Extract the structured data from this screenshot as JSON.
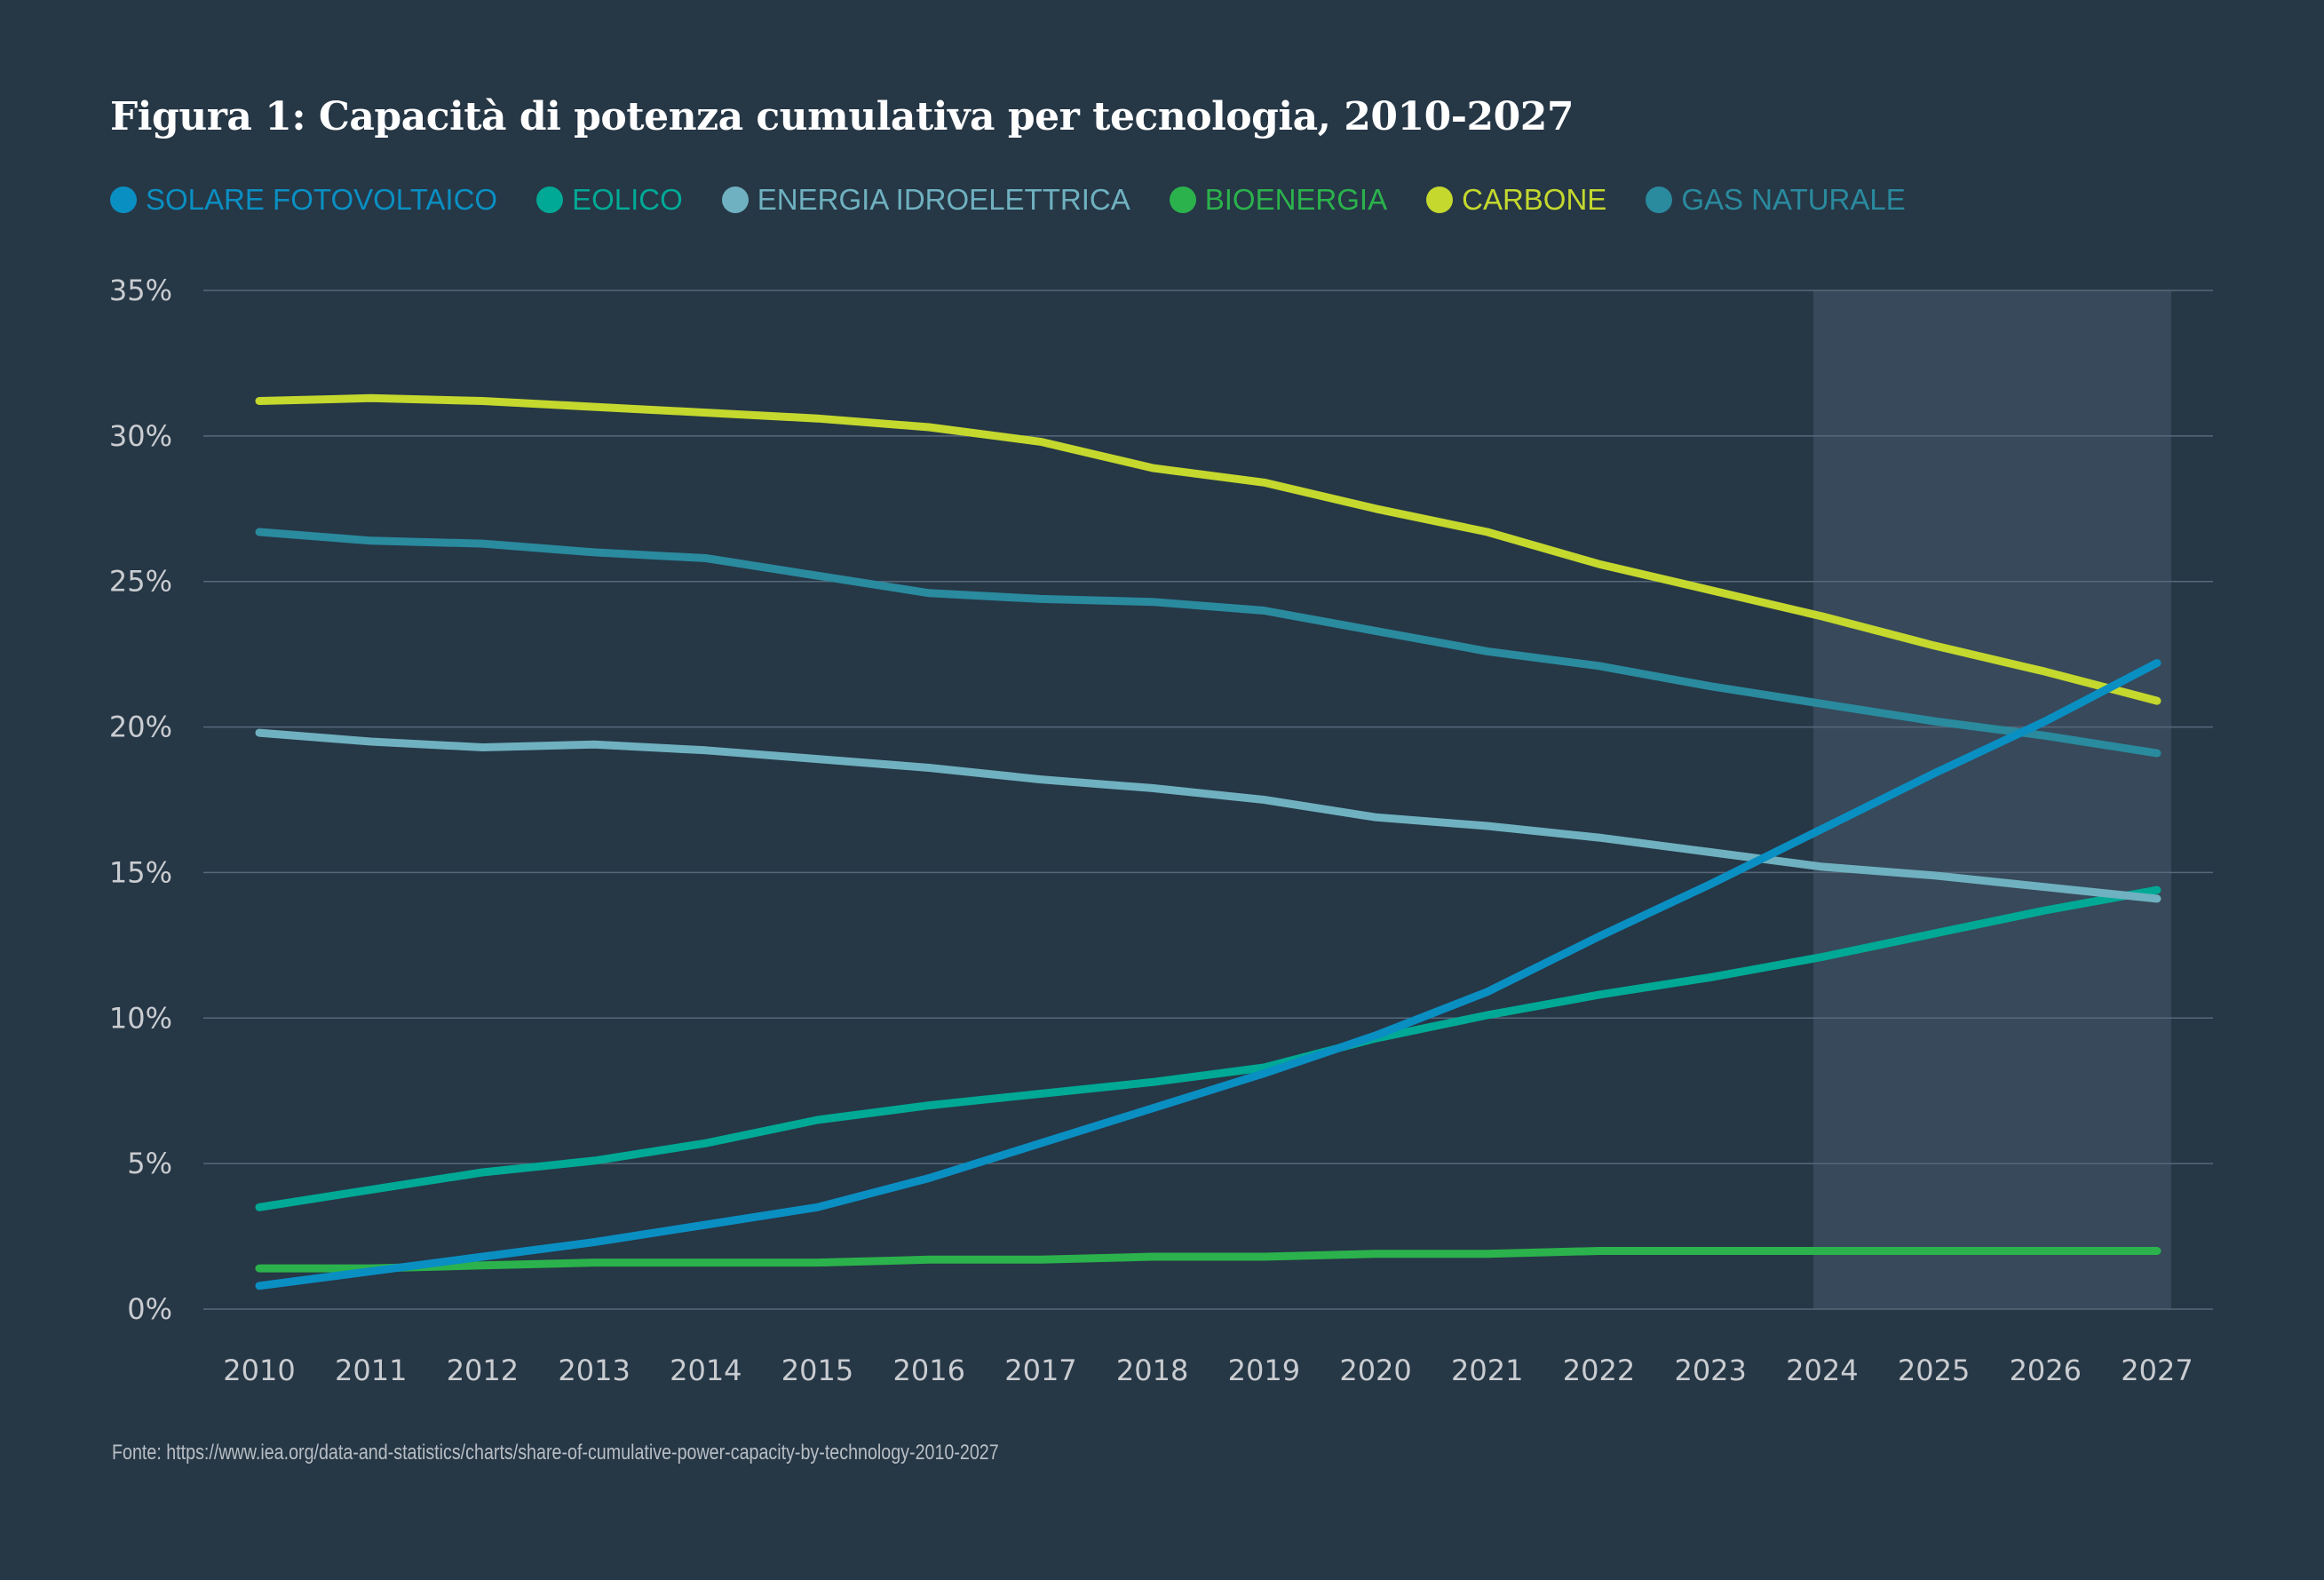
{
  "chart_data": {
    "type": "line",
    "title": "Figura 1: Capacità di potenza cumulativa per tecnologia, 2010-2027",
    "xlabel": "",
    "ylabel": "",
    "x": [
      2010,
      2011,
      2012,
      2013,
      2014,
      2015,
      2016,
      2017,
      2018,
      2019,
      2020,
      2021,
      2022,
      2023,
      2024,
      2025,
      2026,
      2027
    ],
    "x_tick_labels": [
      "2010",
      "2011",
      "2012",
      "2013",
      "2014",
      "2015",
      "2016",
      "2017",
      "2018",
      "2019",
      "2020",
      "2021",
      "2022",
      "2023",
      "2024",
      "2025",
      "2026",
      "2027"
    ],
    "ylim": [
      0,
      35
    ],
    "y_ticks": [
      0,
      5,
      10,
      15,
      20,
      25,
      30,
      35
    ],
    "y_tick_labels": [
      "0%",
      "5%",
      "10%",
      "15%",
      "20%",
      "25%",
      "30%",
      "35%"
    ],
    "grid": true,
    "legend_position": "top-left",
    "forecast_shaded_range": [
      2024,
      2027
    ],
    "series": [
      {
        "name": "SOLARE FOTOVOLTAICO",
        "color": "#0a8fc2",
        "values": [
          0.8,
          1.3,
          1.8,
          2.3,
          2.9,
          3.5,
          4.5,
          5.7,
          6.9,
          8.1,
          9.4,
          10.9,
          12.8,
          14.6,
          16.5,
          18.4,
          20.2,
          22.2
        ]
      },
      {
        "name": "EOLICO",
        "color": "#00a995",
        "values": [
          3.5,
          4.1,
          4.7,
          5.1,
          5.7,
          6.5,
          7.0,
          7.4,
          7.8,
          8.3,
          9.3,
          10.1,
          10.8,
          11.4,
          12.1,
          12.9,
          13.7,
          14.4
        ]
      },
      {
        "name": "ENERGIA IDROELETTRICA",
        "color": "#6fb1c0",
        "values": [
          19.8,
          19.5,
          19.3,
          19.4,
          19.2,
          18.9,
          18.6,
          18.2,
          17.9,
          17.5,
          16.9,
          16.6,
          16.2,
          15.7,
          15.2,
          14.9,
          14.5,
          14.1
        ]
      },
      {
        "name": "BIOENERGIA",
        "color": "#2bb24c",
        "values": [
          1.4,
          1.4,
          1.5,
          1.6,
          1.6,
          1.6,
          1.7,
          1.7,
          1.8,
          1.8,
          1.9,
          1.9,
          2.0,
          2.0,
          2.0,
          2.0,
          2.0,
          2.0
        ]
      },
      {
        "name": "CARBONE",
        "color": "#c4d82e",
        "values": [
          31.2,
          31.3,
          31.2,
          31.0,
          30.8,
          30.6,
          30.3,
          29.8,
          28.9,
          28.4,
          27.5,
          26.7,
          25.6,
          24.7,
          23.8,
          22.8,
          21.9,
          20.9
        ]
      },
      {
        "name": "GAS NATURALE",
        "color": "#2a8a9e",
        "values": [
          26.7,
          26.4,
          26.3,
          26.0,
          25.8,
          25.2,
          24.6,
          24.4,
          24.3,
          24.0,
          23.3,
          22.6,
          22.1,
          21.4,
          20.8,
          20.2,
          19.7,
          19.1
        ]
      }
    ],
    "source": "Fonte: https://www.iea.org/data-and-statistics/charts/share-of-cumulative-power-capacity-by-technology-2010-2027"
  }
}
